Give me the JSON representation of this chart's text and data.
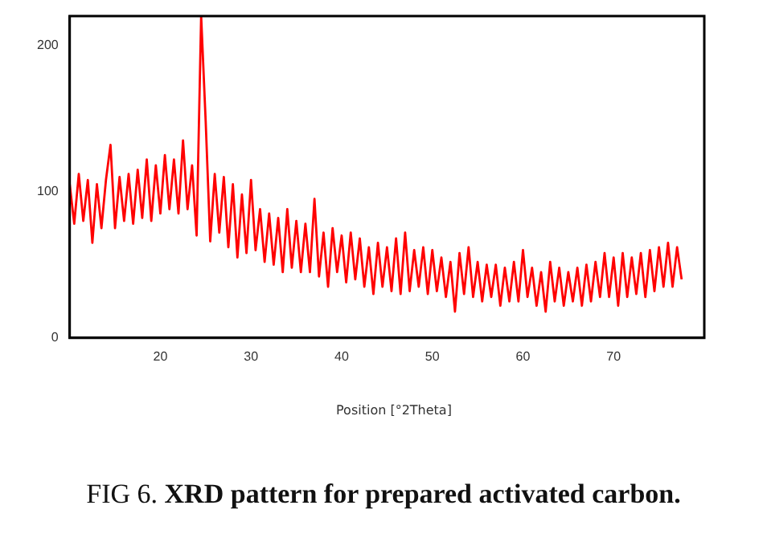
{
  "chart_data": {
    "type": "line",
    "title": "FIG 6. XRD pattern for prepared activated carbon.",
    "xlabel": "Position [°2Theta]",
    "x": [
      10,
      10.5,
      11,
      11.5,
      12,
      12.5,
      13,
      13.5,
      14,
      14.5,
      15,
      15.5,
      16,
      16.5,
      17,
      17.5,
      18,
      18.5,
      19,
      19.5,
      20,
      20.5,
      21,
      21.5,
      22,
      22.5,
      23,
      23.5,
      24,
      24.5,
      25,
      25.5,
      26,
      26.5,
      27,
      27.5,
      28,
      28.5,
      29,
      29.5,
      30,
      30.5,
      31,
      31.5,
      32,
      32.5,
      33,
      33.5,
      34,
      34.5,
      35,
      35.5,
      36,
      36.5,
      37,
      37.5,
      38,
      38.5,
      39,
      39.5,
      40,
      40.5,
      41,
      41.5,
      42,
      42.5,
      43,
      43.5,
      44,
      44.5,
      45,
      45.5,
      46,
      46.5,
      47,
      47.5,
      48,
      48.5,
      49,
      49.5,
      50,
      50.5,
      51,
      51.5,
      52,
      52.5,
      53,
      53.5,
      54,
      54.5,
      55,
      55.5,
      56,
      56.5,
      57,
      57.5,
      58,
      58.5,
      59,
      59.5,
      60,
      60.5,
      61,
      61.5,
      62,
      62.5,
      63,
      63.5,
      64,
      64.5,
      65,
      65.5,
      66,
      66.5,
      67,
      67.5,
      68,
      68.5,
      69,
      69.5,
      70,
      70.5,
      71,
      71.5,
      72,
      72.5,
      73,
      73.5,
      74,
      74.5,
      75,
      75.5,
      76,
      76.5,
      77,
      77.5
    ],
    "series": [
      {
        "color": "#ff0000",
        "values": [
          105,
          78,
          112,
          80,
          108,
          65,
          105,
          75,
          108,
          132,
          75,
          110,
          80,
          112,
          78,
          115,
          82,
          122,
          80,
          118,
          85,
          125,
          88,
          122,
          85,
          135,
          88,
          118,
          70,
          220,
          148,
          66,
          112,
          72,
          110,
          62,
          105,
          55,
          98,
          58,
          108,
          60,
          88,
          52,
          85,
          50,
          82,
          45,
          88,
          48,
          80,
          45,
          78,
          45,
          95,
          42,
          72,
          35,
          75,
          45,
          70,
          38,
          72,
          40,
          68,
          35,
          62,
          30,
          65,
          35,
          62,
          32,
          68,
          30,
          72,
          32,
          60,
          35,
          62,
          30,
          60,
          32,
          55,
          28,
          52,
          18,
          58,
          30,
          62,
          28,
          52,
          25,
          50,
          28,
          50,
          22,
          48,
          25,
          52,
          25,
          60,
          28,
          48,
          22,
          45,
          18,
          52,
          25,
          48,
          22,
          45,
          25,
          48,
          22,
          50,
          25,
          52,
          28,
          58,
          28,
          55,
          22,
          58,
          28,
          55,
          30,
          58,
          28,
          60,
          32,
          62,
          35,
          65,
          35,
          62,
          40
        ]
      }
    ],
    "xlim": [
      10,
      80
    ],
    "xticks": [
      20,
      30,
      40,
      50,
      60,
      70
    ],
    "ylim": [
      0,
      220
    ],
    "yticks": [
      0,
      100,
      200
    ],
    "grid": false,
    "legend": false,
    "marker": "none",
    "line_style": "solid"
  }
}
